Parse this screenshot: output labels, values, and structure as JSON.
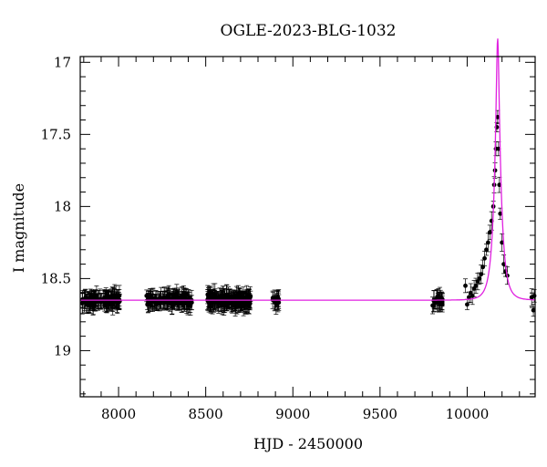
{
  "chart_data": {
    "type": "scatter",
    "title": "OGLE-2023-BLG-1032",
    "xlabel": "HJD - 2450000",
    "ylabel": "I magnitude",
    "xlim": [
      7780,
      10390
    ],
    "ylim": [
      19.32,
      16.96
    ],
    "y_inverted": true,
    "x_ticks": [
      8000,
      8500,
      9000,
      9500,
      10000
    ],
    "x_tick_labels": [
      "8000",
      "8500",
      "9000",
      "9500",
      "10000"
    ],
    "y_ticks": [
      17,
      17.5,
      18,
      18.5,
      19
    ],
    "y_tick_labels": [
      "17",
      "17.5",
      "18",
      "18.5",
      "19"
    ],
    "grid": false,
    "baseline_magnitude": 18.65,
    "seasons": [
      {
        "start": 7790,
        "end": 8010,
        "count": 110
      },
      {
        "start": 8160,
        "end": 8420,
        "count": 130
      },
      {
        "start": 8510,
        "end": 8760,
        "count": 180
      },
      {
        "start": 8880,
        "end": 8920,
        "count": 14
      },
      {
        "start": 9800,
        "end": 9860,
        "count": 24
      }
    ],
    "peak_points": [
      {
        "x": 9990,
        "y": 18.55
      },
      {
        "x": 10000,
        "y": 18.68
      },
      {
        "x": 10010,
        "y": 18.63
      },
      {
        "x": 10020,
        "y": 18.6
      },
      {
        "x": 10030,
        "y": 18.62
      },
      {
        "x": 10040,
        "y": 18.57
      },
      {
        "x": 10050,
        "y": 18.55
      },
      {
        "x": 10060,
        "y": 18.52
      },
      {
        "x": 10070,
        "y": 18.5
      },
      {
        "x": 10080,
        "y": 18.47
      },
      {
        "x": 10090,
        "y": 18.42
      },
      {
        "x": 10100,
        "y": 18.36
      },
      {
        "x": 10110,
        "y": 18.3
      },
      {
        "x": 10120,
        "y": 18.25
      },
      {
        "x": 10130,
        "y": 18.18
      },
      {
        "x": 10140,
        "y": 18.1
      },
      {
        "x": 10150,
        "y": 18.0
      },
      {
        "x": 10155,
        "y": 17.85
      },
      {
        "x": 10160,
        "y": 17.75
      },
      {
        "x": 10165,
        "y": 17.6
      },
      {
        "x": 10170,
        "y": 17.45
      },
      {
        "x": 10175,
        "y": 17.38
      },
      {
        "x": 10180,
        "y": 17.6
      },
      {
        "x": 10185,
        "y": 17.85
      },
      {
        "x": 10190,
        "y": 18.05
      },
      {
        "x": 10200,
        "y": 18.25
      },
      {
        "x": 10210,
        "y": 18.4
      },
      {
        "x": 10220,
        "y": 18.45
      },
      {
        "x": 10230,
        "y": 18.48
      },
      {
        "x": 10370,
        "y": 18.63
      },
      {
        "x": 10380,
        "y": 18.72
      },
      {
        "x": 10385,
        "y": 18.62
      }
    ],
    "model": {
      "name": "",
      "color": "#e020e0",
      "t0": 10175,
      "u0": 0.19,
      "tE": 40,
      "baseline": 18.65
    },
    "point_color": "#000000"
  }
}
